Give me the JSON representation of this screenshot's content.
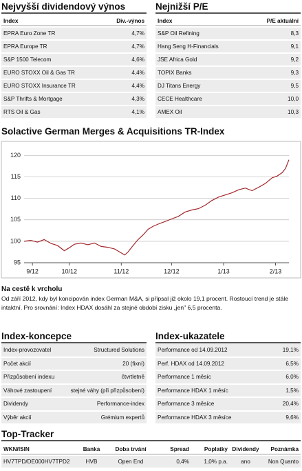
{
  "dividend_table": {
    "title": "Nejvyšší dividendový výnos",
    "columns": [
      "Index",
      "Div.-výnos"
    ],
    "rows": [
      [
        "EPRA Euro Zone TR",
        "4,7%"
      ],
      [
        "EPRA Europe TR",
        "4,7%"
      ],
      [
        "S&P 1500 Telecom",
        "4,6%"
      ],
      [
        "EURO STOXX Oil & Gas TR",
        "4,4%"
      ],
      [
        "EURO STOXX Insurance TR",
        "4,4%"
      ],
      [
        "S&P Thrifts & Mortgage",
        "4,3%"
      ],
      [
        "RTS Oil & Gas",
        "4,1%"
      ]
    ]
  },
  "pe_table": {
    "title": "Nejnižší P/E",
    "columns": [
      "Index",
      "P/E aktuální"
    ],
    "rows": [
      [
        "S&P Oil Refining",
        "8,3"
      ],
      [
        "Hang Seng H-Financials",
        "9,1"
      ],
      [
        "JSE Africa Gold",
        "9,2"
      ],
      [
        "TOPIX Banks",
        "9,3"
      ],
      [
        "DJ Titans Energy",
        "9,5"
      ],
      [
        "CECE Healthcare",
        "10,0"
      ],
      [
        "AMEX Oil",
        "10,3"
      ]
    ]
  },
  "chart": {
    "type": "line",
    "title": "Solactive German Merges & Acquisitions TR-Index",
    "color": "#a3272b",
    "grid": true,
    "x": [
      0,
      4,
      8,
      12,
      16,
      20,
      24,
      27,
      30,
      34,
      38,
      42,
      46,
      50,
      54,
      57,
      60,
      62,
      65,
      68,
      71,
      74,
      77,
      80,
      84,
      88,
      92,
      96,
      100,
      104,
      108,
      112,
      116,
      120,
      124,
      128,
      132,
      136,
      140,
      144,
      148,
      151,
      154,
      156,
      158
    ],
    "values": [
      100,
      100.2,
      99.8,
      100.4,
      99.5,
      99.0,
      97.8,
      98.5,
      99.3,
      99.6,
      99.2,
      99.6,
      98.8,
      98.6,
      98.2,
      97.5,
      96.8,
      97.5,
      99.0,
      100.4,
      101.5,
      102.8,
      103.5,
      104.0,
      104.6,
      105.2,
      105.8,
      106.8,
      107.3,
      107.6,
      108.4,
      109.5,
      110.3,
      110.8,
      111.3,
      112.0,
      112.4,
      111.8,
      112.6,
      113.5,
      114.8,
      115.2,
      116.0,
      117.0,
      119.0
    ],
    "xlim": [
      0,
      158
    ],
    "xticks": [
      {
        "value": 5,
        "label": "9/12"
      },
      {
        "value": 27,
        "label": "10/12"
      },
      {
        "value": 58,
        "label": "11/12"
      },
      {
        "value": 88,
        "label": "12/12"
      },
      {
        "value": 119,
        "label": "1/13"
      },
      {
        "value": 150,
        "label": "2/13"
      }
    ],
    "ylim": [
      95,
      122
    ],
    "yticks": [
      95,
      100,
      105,
      110,
      115,
      120
    ]
  },
  "article": {
    "heading": "Na cestě k vrcholu",
    "text": "Od září 2012, kdy byl koncipován index German M&A, si připsal již okolo 19,1 procent. Rostoucí trend je stále intaktní. Pro srovnání: Index HDAX dosáhl za stejné období zisku „jen\" 6,5 procenta."
  },
  "concept_table": {
    "title": "Index-koncepce",
    "rows": [
      [
        "Index-provozovatel",
        "Structured Solutions"
      ],
      [
        "Počet akcií",
        "20 (fixní)"
      ],
      [
        "Přizpůsobení indexu",
        "čtvrtletně"
      ],
      [
        "Váhové zastoupení",
        "stejné váhy (při přizpůsobení)"
      ],
      [
        "Dividendy",
        "Performance-index"
      ],
      [
        "Výběr akcií",
        "Grémium expertů"
      ]
    ]
  },
  "metrics_table": {
    "title": "Index-ukazatele",
    "rows": [
      [
        "Performance od 14.09.2012",
        "19,1%"
      ],
      [
        "Perf. HDAX od 14.09.2012",
        "6,5%"
      ],
      [
        "Performance 1 měsíc",
        "6,0%"
      ],
      [
        "Performance HDAX 1 měsíc",
        "1,5%"
      ],
      [
        "Performance 3 měsíce",
        "20,4%"
      ],
      [
        "Performance HDAX 3 měsíce",
        "9,6%"
      ]
    ]
  },
  "tracker_table": {
    "title": "Top-Tracker",
    "columns": [
      "WKN/ISIN",
      "Banka",
      "Doba trvání",
      "Spread",
      "Poplatky",
      "Dividendy",
      "Poznámka"
    ],
    "rows": [
      [
        "HV7TPD/DE000HV7TPD2",
        "HVB",
        "Open End",
        "0,4%",
        "1,0% p.a.",
        "ano",
        "Non Quanto"
      ]
    ]
  }
}
